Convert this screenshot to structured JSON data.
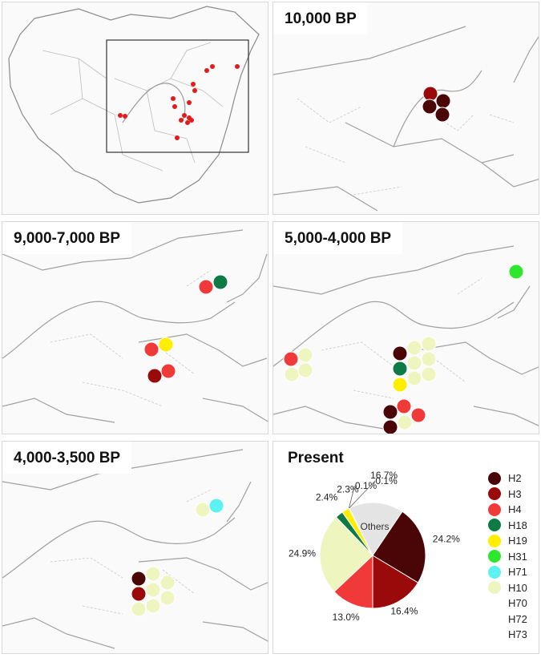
{
  "panels": [
    {
      "id": "overview",
      "title": ""
    },
    {
      "id": "p10000",
      "title": "10,000 BP"
    },
    {
      "id": "p9000",
      "title": "9,000-7,000 BP"
    },
    {
      "id": "p5000",
      "title": "5,000-4,000 BP"
    },
    {
      "id": "p4000",
      "title": "4,000-3,500 BP"
    },
    {
      "id": "present",
      "title": "Present"
    }
  ],
  "colors": {
    "H2": "#4a0606",
    "H3": "#9b0a0a",
    "H4": "#f03a3a",
    "H18": "#0e7a45",
    "H19": "#ffee00",
    "H31": "#2ee62e",
    "H71": "#5cf2f2",
    "H10": "#eef5bf",
    "Others": "#e4e4e4"
  },
  "legend": [
    {
      "label": "H2",
      "color": "#4a0606"
    },
    {
      "label": "H3",
      "color": "#9b0a0a"
    },
    {
      "label": "H4",
      "color": "#f03a3a"
    },
    {
      "label": "H18",
      "color": "#0e7a45"
    },
    {
      "label": "H19",
      "color": "#ffee00"
    },
    {
      "label": "H31",
      "color": "#2ee62e"
    },
    {
      "label": "H71",
      "color": "#5cf2f2"
    },
    {
      "label": "H10",
      "color": "#eef5bf"
    },
    {
      "label": "H70",
      "color": ""
    },
    {
      "label": "H72",
      "color": ""
    },
    {
      "label": "H73",
      "color": ""
    }
  ],
  "pie": {
    "slices": [
      {
        "label": "H2",
        "value": 24.2,
        "value_label": "24.2%",
        "color": "#4a0606"
      },
      {
        "label": "H3",
        "value": 16.4,
        "value_label": "16.4%",
        "color": "#9b0a0a"
      },
      {
        "label": "H4",
        "value": 13.0,
        "value_label": "13.0%",
        "color": "#f03a3a"
      },
      {
        "label": "H10",
        "value": 24.9,
        "value_label": "24.9%",
        "color": "#eef5bf"
      },
      {
        "label": "H18",
        "value": 2.4,
        "value_label": "2.4%",
        "color": "#0e7a45"
      },
      {
        "label": "H19",
        "value": 2.3,
        "value_label": "2.3%",
        "color": "#ffee00"
      },
      {
        "label": "H31",
        "value": 0.1,
        "value_label": "0.1%",
        "color": "#2ee62e"
      },
      {
        "label": "H71",
        "value": 0.1,
        "value_label": "0.1%",
        "color": "#5cf2f2"
      },
      {
        "label": "Others",
        "value": 16.7,
        "value_label": "16.7%",
        "color": "#e4e4e4"
      }
    ],
    "others_label": "Others"
  }
}
